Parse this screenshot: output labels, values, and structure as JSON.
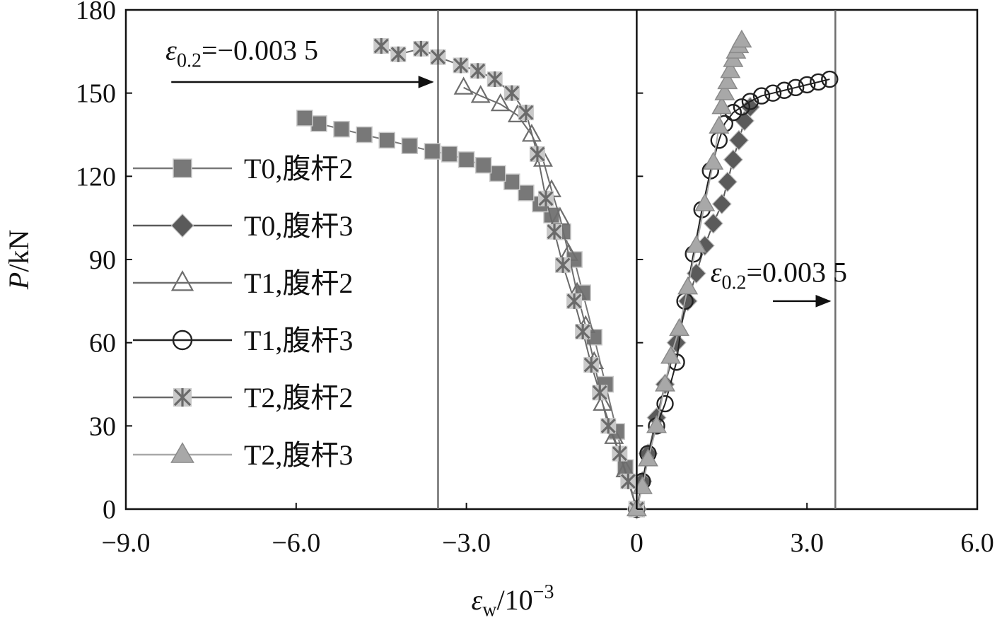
{
  "chart_data": {
    "type": "scatter",
    "xlabel": {
      "main": "ε",
      "sub": "w",
      "rest": "/10",
      "sup": "−3"
    },
    "ylabel": {
      "main": "P",
      "rest": "/kN"
    },
    "xlim": [
      -9,
      6
    ],
    "ylim": [
      0,
      180
    ],
    "xticks": [
      {
        "v": -9,
        "label": "−9.0"
      },
      {
        "v": -6,
        "label": "−6.0"
      },
      {
        "v": -3,
        "label": "−3.0"
      },
      {
        "v": 0,
        "label": "0"
      },
      {
        "v": 3,
        "label": "3.0"
      },
      {
        "v": 6,
        "label": "6.0"
      }
    ],
    "yticks": [
      {
        "v": 0,
        "label": "0"
      },
      {
        "v": 30,
        "label": "30"
      },
      {
        "v": 60,
        "label": "60"
      },
      {
        "v": 90,
        "label": "90"
      },
      {
        "v": 120,
        "label": "120"
      },
      {
        "v": 150,
        "label": "150"
      },
      {
        "v": 180,
        "label": "180"
      }
    ],
    "grid": false,
    "legend_position": "left",
    "reference_lines": [
      {
        "x": -3.5,
        "y_arrow": 154,
        "arrow_from": -8.2,
        "arrow_to": -3.6,
        "label_main": "ε",
        "label_sub": "0.2",
        "label_rest": "=−0.003 5",
        "label_x": -8.3,
        "label_y": 162
      },
      {
        "x": 3.5,
        "y_arrow": 75,
        "arrow_from": 2.4,
        "arrow_to": 3.4,
        "label_main": "ε",
        "label_sub": "0.2",
        "label_rest": "=0.003 5",
        "label_x": 1.3,
        "label_y": 82
      }
    ],
    "series": [
      {
        "name": "T0,腹杆2",
        "marker": "square",
        "color": "#787878",
        "x": [
          0,
          -0.2,
          -0.35,
          -0.55,
          -0.75,
          -0.95,
          -1.1,
          -1.3,
          -1.5,
          -1.7,
          -1.95,
          -2.2,
          -2.45,
          -2.7,
          -3.0,
          -3.3,
          -3.6,
          -4.0,
          -4.4,
          -4.8,
          -5.2,
          -5.6,
          -5.85
        ],
        "y": [
          0,
          15,
          28,
          45,
          62,
          78,
          90,
          100,
          106,
          110,
          114,
          118,
          121,
          124,
          126,
          128,
          129,
          131,
          133,
          135,
          137,
          139,
          141
        ]
      },
      {
        "name": "T0,腹杆3",
        "marker": "diamond",
        "color": "#5a5a5a",
        "x": [
          0,
          0.1,
          0.2,
          0.35,
          0.5,
          0.7,
          0.9,
          1.05,
          1.2,
          1.35,
          1.5,
          1.6,
          1.7,
          1.8,
          1.9,
          2.0
        ],
        "y": [
          0,
          10,
          20,
          33,
          45,
          60,
          75,
          85,
          95,
          103,
          110,
          118,
          126,
          133,
          140,
          145
        ]
      },
      {
        "name": "T1,腹杆2",
        "marker": "tri-open",
        "color": "#6e6e6e",
        "x": [
          0,
          -0.2,
          -0.4,
          -0.6,
          -0.75,
          -0.9,
          -1.05,
          -1.2,
          -1.35,
          -1.5,
          -1.65,
          -1.85,
          -2.1,
          -2.4,
          -2.75,
          -3.05
        ],
        "y": [
          0,
          14,
          26,
          38,
          53,
          66,
          78,
          92,
          105,
          115,
          126,
          135,
          142,
          146,
          149,
          152
        ]
      },
      {
        "name": "T1,腹杆3",
        "marker": "circle-open",
        "color": "#222222",
        "x": [
          0,
          0.1,
          0.2,
          0.35,
          0.5,
          0.7,
          0.85,
          1.0,
          1.15,
          1.3,
          1.45,
          1.55,
          1.7,
          1.85,
          2.0,
          2.2,
          2.4,
          2.6,
          2.8,
          3.0,
          3.2,
          3.4
        ],
        "y": [
          0,
          10,
          20,
          30,
          38,
          53,
          75,
          92,
          108,
          122,
          133,
          139,
          143,
          145,
          147,
          149,
          150,
          151,
          152,
          153,
          154,
          155
        ]
      },
      {
        "name": "T2,腹杆2",
        "marker": "star",
        "color": "#6a6a6a",
        "x": [
          0,
          -0.15,
          -0.3,
          -0.5,
          -0.65,
          -0.8,
          -0.95,
          -1.1,
          -1.3,
          -1.45,
          -1.6,
          -1.75,
          -1.95,
          -2.2,
          -2.5,
          -2.8,
          -3.1,
          -3.5,
          -3.8,
          -4.2,
          -4.5
        ],
        "y": [
          0,
          10,
          20,
          30,
          42,
          52,
          64,
          75,
          88,
          100,
          112,
          128,
          143,
          150,
          155,
          158,
          160,
          163,
          166,
          164,
          167
        ]
      },
      {
        "name": "T2,腹杆3",
        "marker": "tri-filled",
        "color": "#a8a8a8",
        "x": [
          0,
          0.1,
          0.2,
          0.35,
          0.5,
          0.6,
          0.75,
          0.9,
          1.05,
          1.2,
          1.35,
          1.45,
          1.5,
          1.55,
          1.6,
          1.65,
          1.7,
          1.75,
          1.8,
          1.85
        ],
        "y": [
          0,
          8,
          18,
          30,
          45,
          55,
          65,
          80,
          95,
          110,
          125,
          138,
          145,
          150,
          154,
          158,
          162,
          165,
          167,
          169
        ]
      }
    ]
  }
}
